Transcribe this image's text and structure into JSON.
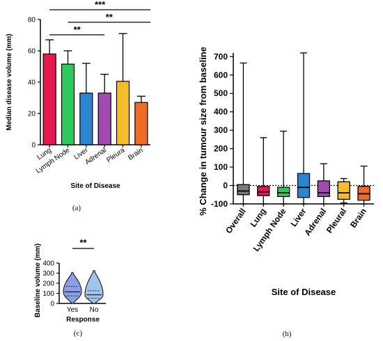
{
  "chart_data": [
    {
      "panel": "(a)",
      "type": "bar",
      "xlabel": "Site of Disease",
      "ylabel": "Median disease volume (mm)",
      "ylim": [
        0,
        80
      ],
      "yticks": [
        0,
        20,
        40,
        60,
        80
      ],
      "categories": [
        "Lung",
        "Lymph Node",
        "Liver",
        "Adrenal",
        "Pleura",
        "Brain"
      ],
      "values": [
        58,
        51.5,
        33,
        33,
        40.5,
        27
      ],
      "error_upper": [
        67,
        60,
        52,
        45,
        71,
        31
      ],
      "colors": [
        "#e8174f",
        "#2ec95c",
        "#2a86d1",
        "#a24ab0",
        "#f5bd2a",
        "#ee6c23"
      ],
      "significance": [
        {
          "label": "***",
          "from": "Lung",
          "to": "Brain"
        },
        {
          "label": "**",
          "from": "Lymph Node",
          "to": "Brain"
        },
        {
          "label": "**",
          "from": "Lung",
          "to": "Adrenal"
        }
      ]
    },
    {
      "panel": "(b)",
      "type": "box",
      "xlabel": "Site of Disease",
      "ylabel": "% Change in tumour size from baseline",
      "ylim": [
        -100,
        720
      ],
      "yticks": [
        -100,
        0,
        100,
        200,
        300,
        400,
        500,
        600,
        700
      ],
      "reference_line": 0,
      "categories": [
        "Overall",
        "Lung",
        "Lymph Node",
        "Liver",
        "Adrenal",
        "Pleural",
        "Brain"
      ],
      "boxes": [
        {
          "min": -100,
          "q1": -50,
          "median": -30,
          "q3": 5,
          "max": 665
        },
        {
          "min": -100,
          "q1": -55,
          "median": -35,
          "q3": -5,
          "max": 260
        },
        {
          "min": -100,
          "q1": -60,
          "median": -40,
          "q3": -10,
          "max": 295
        },
        {
          "min": -100,
          "q1": -65,
          "median": -10,
          "q3": 65,
          "max": 720
        },
        {
          "min": -100,
          "q1": -60,
          "median": -40,
          "q3": 25,
          "max": 118
        },
        {
          "min": -95,
          "q1": -75,
          "median": -40,
          "q3": 20,
          "max": 38
        },
        {
          "min": -100,
          "q1": -80,
          "median": -45,
          "q3": -5,
          "max": 105
        }
      ],
      "colors": [
        "#7a7a7a",
        "#e8174f",
        "#2ec95c",
        "#2a86d1",
        "#a24ab0",
        "#f5bd2a",
        "#ee6c23"
      ]
    },
    {
      "panel": "(c)",
      "type": "violin",
      "xlabel": "Response",
      "ylabel": "Baseline volume (mm)",
      "ylim": [
        0,
        400
      ],
      "yticks": [
        0,
        100,
        200,
        300,
        400
      ],
      "categories": [
        "Yes",
        "No"
      ],
      "violins": [
        {
          "min": 0,
          "q1": 75,
          "median": 115,
          "q3": 170,
          "max": 305
        },
        {
          "min": 0,
          "q1": 50,
          "median": 85,
          "q3": 125,
          "max": 325
        }
      ],
      "colors": [
        "#8aa0e6",
        "#9fc3ea"
      ],
      "significance": [
        {
          "label": "**",
          "from": "Yes",
          "to": "No"
        }
      ]
    }
  ]
}
